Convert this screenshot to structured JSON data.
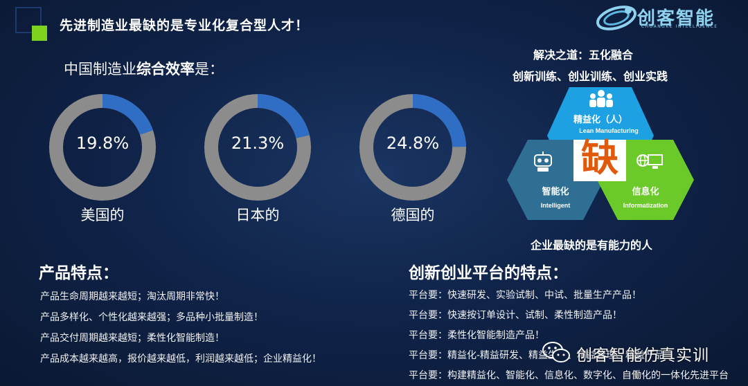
{
  "slide": {
    "title": "先进制造业最缺的是专业化复合型人才！"
  },
  "logo": {
    "name": "创客智能",
    "subtitle": "CHUANGKE INTELLIGENCE"
  },
  "efficiency": {
    "title_prefix": "中国制造业",
    "title_bold": "综合效率",
    "title_suffix": "是：",
    "donuts": [
      {
        "value": "19.8%",
        "fraction": 0.198,
        "label": "美国的"
      },
      {
        "value": "21.3%",
        "fraction": 0.213,
        "label": "日本的"
      },
      {
        "value": "24.8%",
        "fraction": 0.248,
        "label": "德国的"
      }
    ],
    "colors": {
      "ring": "#8c8c8c",
      "fill": "#2f6ec4"
    }
  },
  "solution": {
    "title": "解决之道：五化融合",
    "subtitle": "创新训练、创业训练、创业实践",
    "hexagons": [
      {
        "label": "精益化（人）",
        "sub": "Lean Manufacturing",
        "color": "#1da1e2"
      },
      {
        "label": "智能化",
        "sub": "Intelligent",
        "color": "#2f6f94"
      },
      {
        "label": "信息化",
        "sub": "Informatization",
        "color": "#6cc92a"
      }
    ],
    "center_char": "缺",
    "caption": "企业最缺的是有能力的人"
  },
  "product_features": {
    "title": "产品特点：",
    "lines": [
      "产品生命周期越来越短；淘汰周期非常快！",
      "产品多样化、个性化越来越强；多品种小批量制造！",
      "产品交付周期越来越短；柔性化智能制造！",
      "产品成本越来越高，报价越来越低，利润越来越低；企业精益化！"
    ]
  },
  "platform_features": {
    "title": "创新创业平台的特点：",
    "lines": [
      "平台要：快速研发、实验试制、中试、批量生产产品！",
      "平台要：快速按订单设计、试制、柔性制造产品！",
      "平台要：柔性化智能制造产品！",
      "平台要：精益化-精益研发、精益生产、精益管理、精益产品",
      "平台要：构建精益化、智能化、信息化、数字化、自働化的一体化先进平台"
    ]
  },
  "watermark": {
    "text": "创客智能仿真实训",
    "icon": "wechat-icon"
  }
}
